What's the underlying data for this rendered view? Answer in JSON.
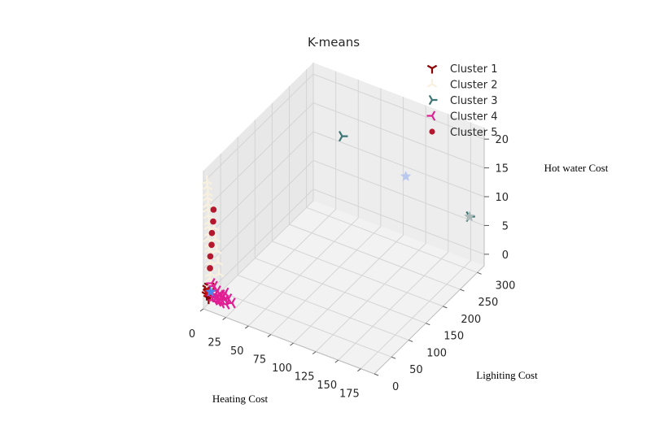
{
  "chart_data": {
    "type": "scatter",
    "subtype": "3d-scatter",
    "title": "K-means",
    "xlabel": "Heating Cost",
    "ylabel": "Lighiting Cost",
    "zlabel": "Hot water Cost",
    "xlim": [
      0,
      190
    ],
    "ylim": [
      0,
      320
    ],
    "zlim": [
      -2,
      22
    ],
    "x_ticks": [
      0,
      25,
      50,
      75,
      100,
      125,
      150,
      175
    ],
    "y_ticks": [
      0,
      50,
      100,
      150,
      200,
      250,
      300
    ],
    "z_ticks": [
      0,
      5,
      10,
      15,
      20
    ],
    "grid": true,
    "legend_position": "top-right",
    "series": [
      {
        "name": "Cluster 1",
        "color": "#8b0000",
        "marker": "tri-down",
        "points": [
          [
            3,
            2,
            0.5
          ],
          [
            4,
            3,
            1
          ],
          [
            5,
            2,
            0
          ],
          [
            3,
            4,
            1.5
          ],
          [
            6,
            3,
            0.5
          ],
          [
            4,
            5,
            1
          ],
          [
            5,
            4,
            2
          ]
        ]
      },
      {
        "name": "Cluster 2",
        "color": "#f8f1e0",
        "marker": "tri-up",
        "points": [
          [
            2,
            5,
            20
          ],
          [
            2,
            6,
            19
          ],
          [
            3,
            5,
            18
          ],
          [
            2,
            7,
            17
          ],
          [
            3,
            6,
            16
          ],
          [
            2,
            8,
            15
          ],
          [
            3,
            7,
            14
          ],
          [
            4,
            6,
            13
          ],
          [
            3,
            8,
            12
          ],
          [
            4,
            7,
            11
          ],
          [
            3,
            6,
            10
          ],
          [
            4,
            8,
            9
          ],
          [
            3,
            9,
            8
          ],
          [
            4,
            7,
            7
          ],
          [
            5,
            8,
            6
          ],
          [
            4,
            9,
            5
          ],
          [
            5,
            7,
            4
          ],
          [
            4,
            8,
            3
          ],
          [
            5,
            9,
            2
          ],
          [
            6,
            8,
            1
          ],
          [
            8,
            10,
            12
          ],
          [
            9,
            11,
            10
          ],
          [
            10,
            12,
            8
          ],
          [
            11,
            13,
            6
          ],
          [
            12,
            14,
            4
          ]
        ]
      },
      {
        "name": "Cluster 3",
        "color": "#3d7575",
        "marker": "tri-left",
        "points": [
          [
            55,
            260,
            16
          ],
          [
            185,
            290,
            8
          ]
        ]
      },
      {
        "name": "Cluster 4",
        "color": "#e01f93",
        "marker": "tri-right",
        "points": [
          [
            6,
            4,
            0.5
          ],
          [
            8,
            5,
            1
          ],
          [
            10,
            6,
            0.5
          ],
          [
            12,
            4,
            1
          ],
          [
            14,
            5,
            0.5
          ],
          [
            16,
            6,
            1
          ],
          [
            18,
            5,
            0.5
          ],
          [
            20,
            7,
            1
          ],
          [
            9,
            8,
            2
          ],
          [
            11,
            3,
            0
          ],
          [
            13,
            7,
            1.5
          ],
          [
            15,
            3,
            0
          ],
          [
            17,
            8,
            1
          ],
          [
            22,
            6,
            0.5
          ],
          [
            24,
            4,
            0
          ],
          [
            26,
            5,
            1
          ],
          [
            7,
            6,
            2.5
          ],
          [
            19,
            2,
            0
          ],
          [
            21,
            9,
            1.5
          ],
          [
            30,
            5,
            0.5
          ]
        ]
      },
      {
        "name": "Cluster 5",
        "color": "#b5182e",
        "marker": "circle",
        "points": [
          [
            5,
            6,
            5
          ],
          [
            5,
            7,
            7
          ],
          [
            6,
            8,
            9
          ],
          [
            6,
            9,
            11
          ],
          [
            7,
            10,
            13
          ],
          [
            7,
            11,
            15
          ]
        ]
      }
    ],
    "centroids": [
      {
        "color": "#cc1111",
        "marker": "star",
        "point": [
          4,
          3,
          1
        ]
      },
      {
        "color": "#4b86ee",
        "marker": "star",
        "point": [
          6,
          5,
          1
        ]
      },
      {
        "color": "#b8c8ef",
        "marker": "star",
        "point": [
          120,
          275,
          12
        ]
      },
      {
        "color": "#aab8b8",
        "marker": "star",
        "point": [
          185,
          290,
          8
        ]
      }
    ]
  }
}
